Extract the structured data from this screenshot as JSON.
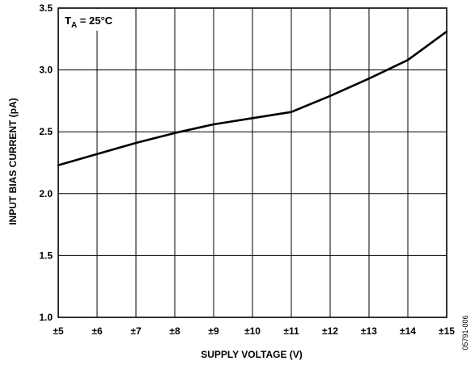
{
  "chart_data": {
    "type": "line",
    "title": "",
    "xlabel": "SUPPLY VOLTAGE (V)",
    "ylabel": "INPUT BIAS CURRENT (pA)",
    "x": [
      5,
      6,
      7,
      8,
      9,
      10,
      11,
      12,
      13,
      14,
      15
    ],
    "x_tick_labels": [
      "±5",
      "±6",
      "±7",
      "±8",
      "±9",
      "±10",
      "±11",
      "±12",
      "±13",
      "±14",
      "±15"
    ],
    "y_ticks": [
      1.0,
      1.5,
      2.0,
      2.5,
      3.0,
      3.5
    ],
    "y_tick_labels": [
      "1.0",
      "1.5",
      "2.0",
      "2.5",
      "3.0",
      "3.5"
    ],
    "xlim": [
      5,
      15
    ],
    "ylim": [
      1.0,
      3.5
    ],
    "grid": true,
    "series": [
      {
        "values": [
          2.23,
          2.32,
          2.41,
          2.49,
          2.56,
          2.61,
          2.66,
          2.79,
          2.93,
          3.08,
          3.31
        ]
      }
    ],
    "annotation": {
      "main": "T",
      "sub": "A",
      "rest": " = 25°C"
    },
    "figure_id": "05791-006"
  }
}
